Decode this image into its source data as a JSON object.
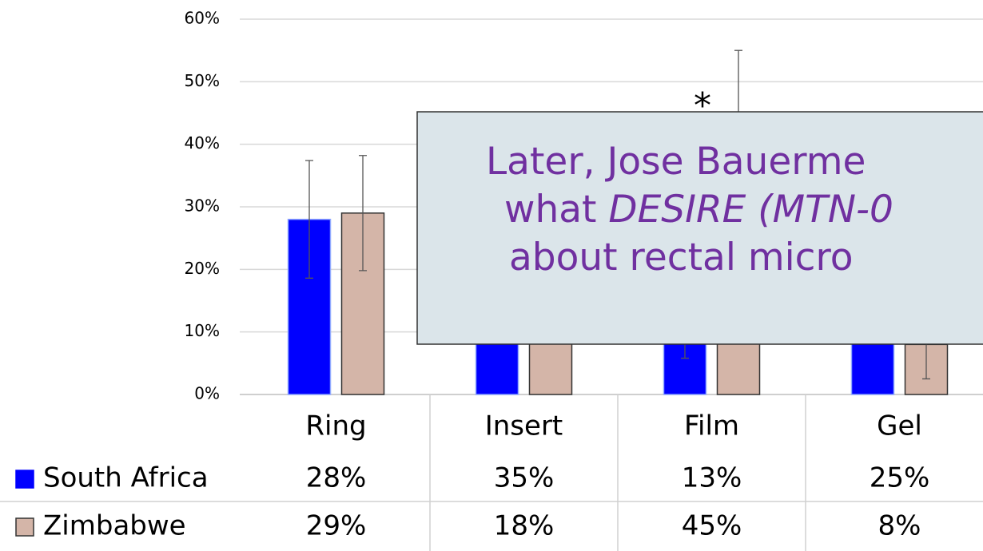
{
  "chart_data": {
    "type": "bar",
    "categories": [
      "Ring",
      "Insert",
      "Film",
      "Gel"
    ],
    "series": [
      {
        "name": "South Africa",
        "color": "#0000ff",
        "values": [
          28,
          35,
          13,
          25
        ],
        "value_labels": [
          "28%",
          "35%",
          "13%",
          "25%"
        ],
        "errors": [
          9.4,
          null,
          7.2,
          null
        ]
      },
      {
        "name": "Zimbabwe",
        "color": "#d4b5a8",
        "values": [
          29,
          18,
          45,
          8
        ],
        "value_labels": [
          "29%",
          "18%",
          "45%",
          "8%"
        ],
        "errors": [
          9.2,
          null,
          10,
          5.5
        ]
      }
    ],
    "ylim": [
      0,
      60
    ],
    "yticks": [
      {
        "value": 0,
        "label": "0%"
      },
      {
        "value": 10,
        "label": "10%"
      },
      {
        "value": 20,
        "label": "20%"
      },
      {
        "value": 30,
        "label": "30%"
      },
      {
        "value": 40,
        "label": "40%"
      },
      {
        "value": 50,
        "label": "50%"
      },
      {
        "value": 60,
        "label": "60%"
      }
    ],
    "grid": true,
    "annotation": "*"
  },
  "overlay": {
    "lines": [
      [
        "Later, Jose Bauerme"
      ],
      [
        "what ",
        "DESIRE (MTN-0"
      ],
      [
        "about rectal micro"
      ]
    ]
  }
}
